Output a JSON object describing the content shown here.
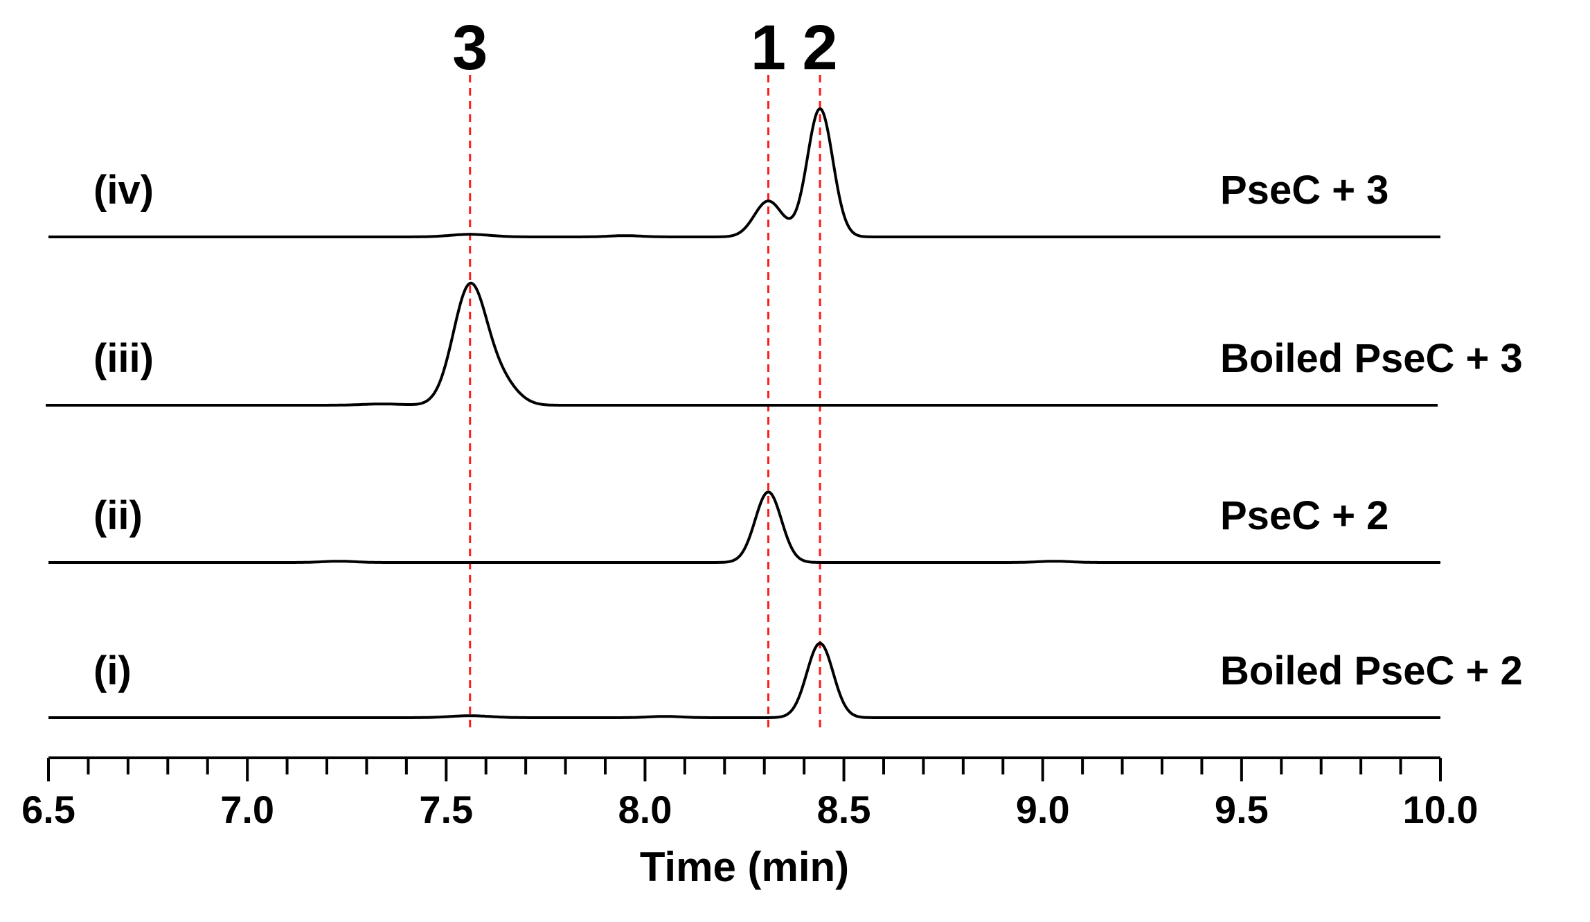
{
  "chart_data": {
    "type": "line",
    "xlabel": "Time (min)",
    "xlim": [
      6.5,
      10.0
    ],
    "x_ticks": [
      "6.5",
      "7.0",
      "7.5",
      "8.0",
      "8.5",
      "9.0",
      "9.5",
      "10.0"
    ],
    "peak_markers": [
      {
        "label": "3",
        "x": 7.56
      },
      {
        "label": "1",
        "x": 8.31
      },
      {
        "label": "2",
        "x": 8.44
      }
    ],
    "series": [
      {
        "name": "PseC + 3",
        "panel": "(iv)",
        "peaks": [
          {
            "x": 7.56,
            "height": 0.02,
            "width": 0.05
          },
          {
            "x": 8.31,
            "height": 0.28,
            "width": 0.035
          },
          {
            "x": 8.44,
            "height": 1.0,
            "width": 0.032
          },
          {
            "x": 7.95,
            "height": 0.01,
            "width": 0.04
          }
        ]
      },
      {
        "name": "Boiled PseC + 3",
        "panel": "(iii)",
        "peaks": [
          {
            "x": 7.56,
            "height": 0.93,
            "width": 0.042
          },
          {
            "x": 7.64,
            "height": 0.16,
            "width": 0.04
          },
          {
            "x": 7.34,
            "height": 0.01,
            "width": 0.05
          }
        ]
      },
      {
        "name": "PseC + 2",
        "panel": "(ii)",
        "peaks": [
          {
            "x": 8.31,
            "height": 0.55,
            "width": 0.033
          },
          {
            "x": 7.23,
            "height": 0.01,
            "width": 0.04
          },
          {
            "x": 9.03,
            "height": 0.01,
            "width": 0.04
          }
        ]
      },
      {
        "name": "Boiled PseC + 2",
        "panel": "(i)",
        "peaks": [
          {
            "x": 8.44,
            "height": 0.58,
            "width": 0.033
          },
          {
            "x": 7.56,
            "height": 0.015,
            "width": 0.05
          },
          {
            "x": 8.05,
            "height": 0.01,
            "width": 0.04
          }
        ]
      }
    ]
  }
}
